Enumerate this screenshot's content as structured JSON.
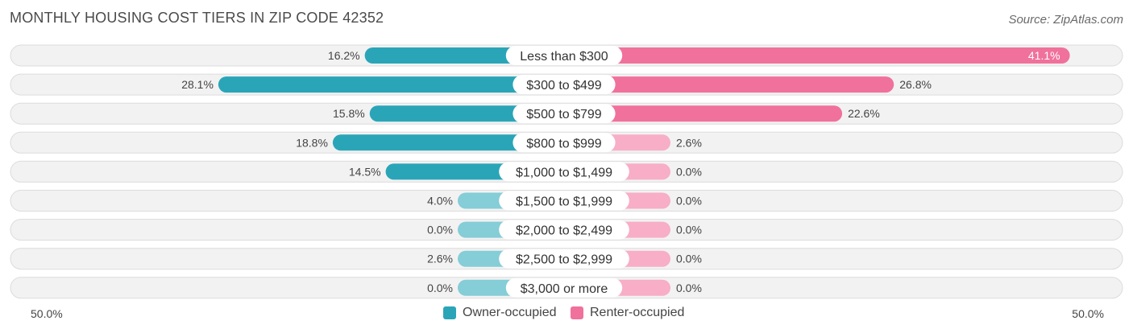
{
  "title": "MONTHLY HOUSING COST TIERS IN ZIP CODE 42352",
  "source": "Source: ZipAtlas.com",
  "axis": {
    "left_label": "50.0%",
    "right_label": "50.0%"
  },
  "legend": {
    "owner_label": "Owner-occupied",
    "renter_label": "Renter-occupied"
  },
  "colors": {
    "owner": "#2aa5b8",
    "owner_light": "#85cdd7",
    "renter": "#f0719b",
    "renter_light": "#f7aec6"
  },
  "chart_data": {
    "type": "bar",
    "orientation": "horizontal-diverging",
    "title": "MONTHLY HOUSING COST TIERS IN ZIP CODE 42352",
    "xlim": [
      -50,
      50
    ],
    "categories": [
      "Less than $300",
      "$300 to $499",
      "$500 to $799",
      "$800 to $999",
      "$1,000 to $1,499",
      "$1,500 to $1,999",
      "$2,000 to $2,499",
      "$2,500 to $2,999",
      "$3,000 or more"
    ],
    "series": [
      {
        "name": "Owner-occupied",
        "values": [
          16.2,
          28.1,
          15.8,
          18.8,
          14.5,
          4.0,
          0.0,
          2.6,
          0.0
        ],
        "labels": [
          "16.2%",
          "28.1%",
          "15.8%",
          "18.8%",
          "14.5%",
          "4.0%",
          "0.0%",
          "2.6%",
          "0.0%"
        ]
      },
      {
        "name": "Renter-occupied",
        "values": [
          41.1,
          26.8,
          22.6,
          2.6,
          0.0,
          0.0,
          0.0,
          0.0,
          0.0
        ],
        "labels": [
          "41.1%",
          "26.8%",
          "22.6%",
          "2.6%",
          "0.0%",
          "0.0%",
          "0.0%",
          "0.0%",
          "0.0%"
        ]
      }
    ],
    "legend_position": "bottom-center"
  }
}
